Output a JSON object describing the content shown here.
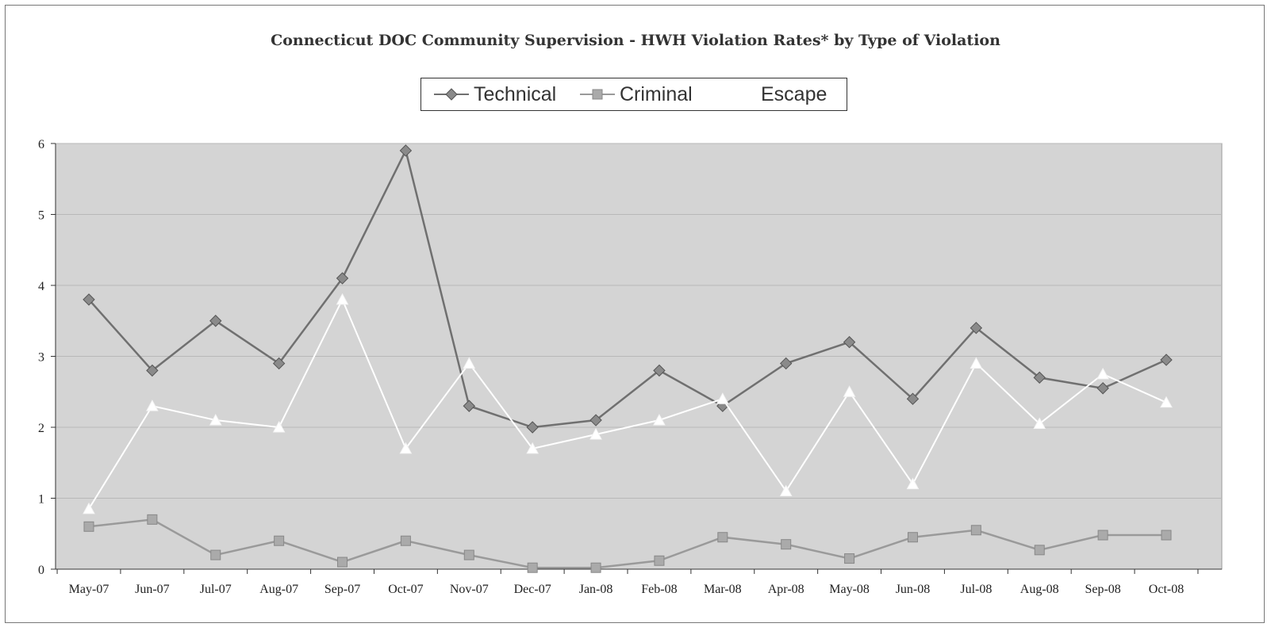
{
  "chart_data": {
    "type": "line",
    "title": "Connecticut DOC Community Supervision - HWH Violation Rates* by Type of Violation",
    "categories": [
      "May-07",
      "Jun-07",
      "Jul-07",
      "Aug-07",
      "Sep-07",
      "Oct-07",
      "Nov-07",
      "Dec-07",
      "Jan-08",
      "Feb-08",
      "Mar-08",
      "Apr-08",
      "May-08",
      "Jun-08",
      "Jul-08",
      "Aug-08",
      "Sep-08",
      "Oct-08"
    ],
    "series": [
      {
        "name": "Technical",
        "marker": "diamond",
        "color": "#707070",
        "values": [
          3.8,
          2.8,
          3.5,
          2.9,
          4.1,
          5.9,
          2.3,
          2.0,
          2.1,
          2.8,
          2.3,
          2.9,
          3.2,
          2.4,
          3.4,
          2.7,
          2.55,
          2.95
        ]
      },
      {
        "name": "Criminal",
        "marker": "square",
        "color": "#9a9a9a",
        "values": [
          0.6,
          0.7,
          0.2,
          0.4,
          0.1,
          0.4,
          0.2,
          0.02,
          0.02,
          0.12,
          0.45,
          0.35,
          0.15,
          0.45,
          0.55,
          0.27,
          0.48,
          0.48
        ]
      },
      {
        "name": "Escape",
        "marker": "triangle",
        "color": "#ffffff",
        "values": [
          0.85,
          2.3,
          2.1,
          2.0,
          3.8,
          1.7,
          2.9,
          1.7,
          1.9,
          2.1,
          2.4,
          1.1,
          2.5,
          1.2,
          2.9,
          2.05,
          2.75,
          2.35
        ]
      }
    ],
    "ylim": [
      0,
      6
    ],
    "yticks": [
      0,
      1,
      2,
      3,
      4,
      5,
      6
    ],
    "grid": true,
    "legend": "top-center",
    "xlabel": "",
    "ylabel": ""
  }
}
